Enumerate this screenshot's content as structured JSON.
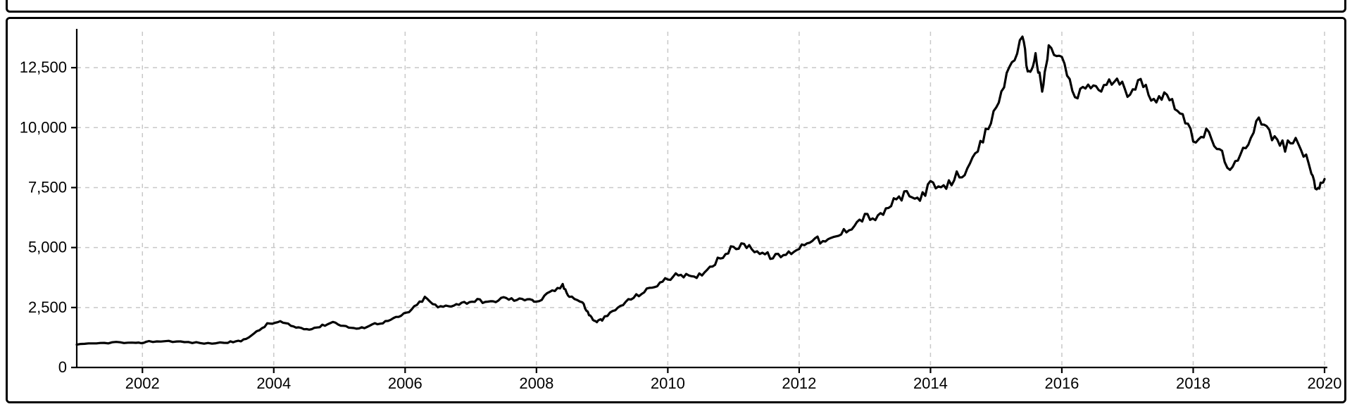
{
  "chart": {
    "type": "line",
    "x_domain": [
      2001,
      2020
    ],
    "y_domain": [
      0,
      14000
    ],
    "x_ticks": [
      2002,
      2004,
      2006,
      2008,
      2010,
      2012,
      2014,
      2016,
      2018,
      2020
    ],
    "y_ticks": [
      0,
      2500,
      5000,
      7500,
      10000,
      12500
    ],
    "y_tick_format": "thousands_comma",
    "axis_fontsize": 22,
    "axis_fontweight": "400",
    "line_color": "#000000",
    "line_width": 3.2,
    "grid_color": "#c8c8c8",
    "grid_dash": "6,6",
    "axis_color": "#000000",
    "axis_width": 2.2,
    "border_color": "#000000",
    "background_color": "#ffffff",
    "series": [
      [
        2001.0,
        950
      ],
      [
        2001.3,
        1000
      ],
      [
        2001.6,
        1050
      ],
      [
        2001.9,
        1000
      ],
      [
        2002.1,
        1080
      ],
      [
        2002.4,
        1100
      ],
      [
        2002.7,
        1050
      ],
      [
        2003.0,
        1000
      ],
      [
        2003.3,
        1050
      ],
      [
        2003.5,
        1100
      ],
      [
        2003.7,
        1400
      ],
      [
        2003.9,
        1800
      ],
      [
        2004.1,
        1900
      ],
      [
        2004.3,
        1700
      ],
      [
        2004.5,
        1600
      ],
      [
        2004.7,
        1700
      ],
      [
        2004.9,
        1900
      ],
      [
        2005.1,
        1700
      ],
      [
        2005.3,
        1600
      ],
      [
        2005.5,
        1800
      ],
      [
        2005.7,
        1900
      ],
      [
        2005.9,
        2100
      ],
      [
        2006.1,
        2400
      ],
      [
        2006.3,
        2900
      ],
      [
        2006.5,
        2500
      ],
      [
        2006.7,
        2600
      ],
      [
        2006.9,
        2700
      ],
      [
        2007.1,
        2800
      ],
      [
        2007.3,
        2700
      ],
      [
        2007.5,
        2900
      ],
      [
        2007.7,
        2800
      ],
      [
        2007.9,
        2900
      ],
      [
        2008.0,
        2700
      ],
      [
        2008.2,
        3100
      ],
      [
        2008.4,
        3400
      ],
      [
        2008.5,
        3000
      ],
      [
        2008.7,
        2700
      ],
      [
        2008.8,
        2200
      ],
      [
        2008.9,
        1900
      ],
      [
        2009.0,
        2000
      ],
      [
        2009.2,
        2400
      ],
      [
        2009.4,
        2800
      ],
      [
        2009.6,
        3100
      ],
      [
        2009.8,
        3400
      ],
      [
        2010.0,
        3700
      ],
      [
        2010.2,
        3900
      ],
      [
        2010.4,
        3700
      ],
      [
        2010.6,
        4100
      ],
      [
        2010.8,
        4600
      ],
      [
        2011.0,
        5000
      ],
      [
        2011.2,
        5100
      ],
      [
        2011.4,
        4800
      ],
      [
        2011.6,
        4600
      ],
      [
        2011.8,
        4700
      ],
      [
        2012.0,
        5000
      ],
      [
        2012.2,
        5400
      ],
      [
        2012.4,
        5200
      ],
      [
        2012.6,
        5500
      ],
      [
        2012.8,
        5900
      ],
      [
        2013.0,
        6300
      ],
      [
        2013.2,
        6200
      ],
      [
        2013.4,
        6800
      ],
      [
        2013.6,
        7200
      ],
      [
        2013.8,
        7000
      ],
      [
        2014.0,
        7600
      ],
      [
        2014.2,
        7400
      ],
      [
        2014.4,
        8000
      ],
      [
        2014.6,
        8300
      ],
      [
        2014.8,
        9500
      ],
      [
        2015.0,
        10800
      ],
      [
        2015.2,
        12500
      ],
      [
        2015.4,
        13700
      ],
      [
        2015.5,
        12200
      ],
      [
        2015.6,
        13000
      ],
      [
        2015.7,
        11500
      ],
      [
        2015.8,
        13300
      ],
      [
        2016.0,
        12900
      ],
      [
        2016.2,
        11200
      ],
      [
        2016.4,
        11800
      ],
      [
        2016.6,
        11600
      ],
      [
        2016.8,
        12000
      ],
      [
        2017.0,
        11500
      ],
      [
        2017.2,
        11900
      ],
      [
        2017.4,
        11200
      ],
      [
        2017.6,
        11400
      ],
      [
        2017.8,
        10700
      ],
      [
        2018.0,
        9500
      ],
      [
        2018.2,
        9800
      ],
      [
        2018.4,
        9000
      ],
      [
        2018.6,
        8200
      ],
      [
        2018.8,
        9200
      ],
      [
        2019.0,
        10500
      ],
      [
        2019.2,
        9600
      ],
      [
        2019.4,
        9200
      ],
      [
        2019.6,
        9500
      ],
      [
        2019.8,
        8100
      ],
      [
        2019.9,
        7300
      ],
      [
        2020.0,
        8000
      ]
    ],
    "noise_amplitude": 220,
    "noise_segments": 5
  }
}
